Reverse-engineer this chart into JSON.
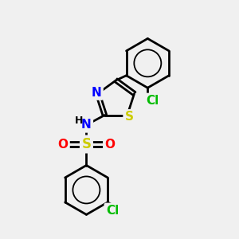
{
  "background_color": "#f0f0f0",
  "bond_color": "#000000",
  "bond_width": 2.0,
  "atom_colors": {
    "N": "#0000ff",
    "S_sulfonamide": "#cccc00",
    "S_thiazole": "#cccc00",
    "O": "#ff0000",
    "Cl": "#00bb00",
    "H": "#000000"
  },
  "font_size_atoms": 11,
  "figsize": [
    3.0,
    3.0
  ],
  "dpi": 100,
  "xlim": [
    0,
    10
  ],
  "ylim": [
    0,
    10
  ]
}
